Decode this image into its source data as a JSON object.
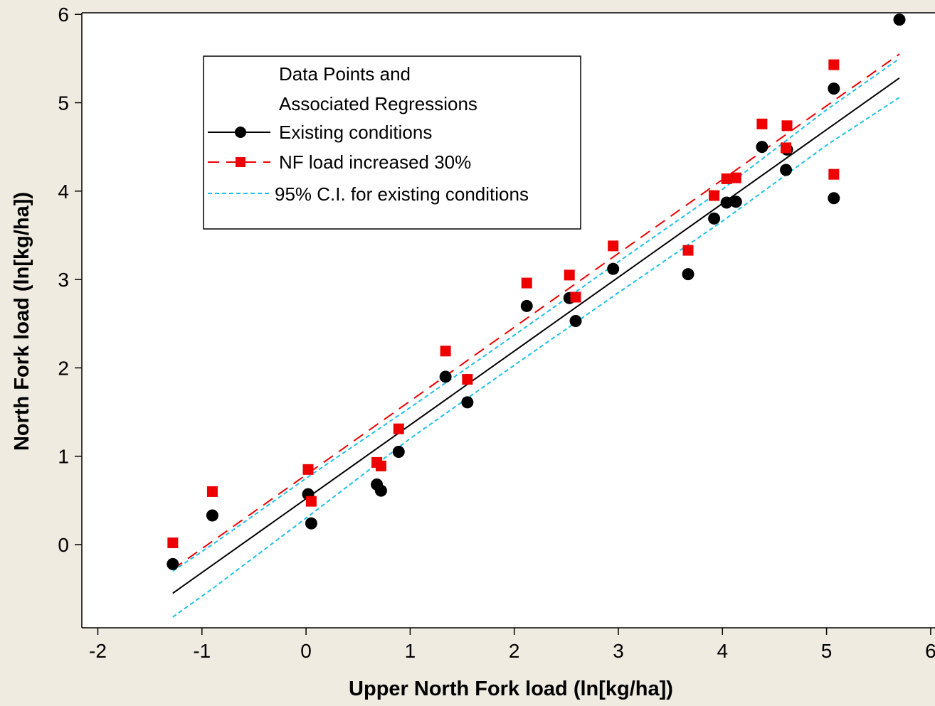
{
  "chart_data": {
    "type": "scatter",
    "xlabel": "Upper North Fork load (ln[kg/ha])",
    "ylabel": "North Fork load (ln[kg/ha])",
    "xlim": [
      -2,
      6
    ],
    "ylim": [
      -0.9,
      6
    ],
    "x_ticks": [
      "-2",
      "-1",
      "0",
      "1",
      "2",
      "3",
      "4",
      "5",
      "6"
    ],
    "y_ticks": [
      "0",
      "1",
      "2",
      "3",
      "4",
      "5",
      "6"
    ],
    "legend": {
      "position": "top-left",
      "title_lines": [
        "Data Points and",
        "Associated Regressions"
      ],
      "entries": [
        "Existing conditions",
        "NF load increased 30%",
        "95% C.I. for existing conditions"
      ]
    },
    "colors": {
      "existing": "#000000",
      "increased": "#ee0000",
      "ci": "#1ec0ea",
      "background": "#efebe1"
    },
    "series": [
      {
        "name": "Existing conditions",
        "marker": "circle",
        "points": [
          [
            -1.28,
            -0.22
          ],
          [
            -0.9,
            0.33
          ],
          [
            0.02,
            0.57
          ],
          [
            0.05,
            0.24
          ],
          [
            0.68,
            0.68
          ],
          [
            0.72,
            0.61
          ],
          [
            0.89,
            1.05
          ],
          [
            1.34,
            1.9
          ],
          [
            1.55,
            1.61
          ],
          [
            2.12,
            2.7
          ],
          [
            2.53,
            2.79
          ],
          [
            2.59,
            2.53
          ],
          [
            2.95,
            3.12
          ],
          [
            3.67,
            3.06
          ],
          [
            3.92,
            3.69
          ],
          [
            4.04,
            3.87
          ],
          [
            4.13,
            3.88
          ],
          [
            4.38,
            4.5
          ],
          [
            4.61,
            4.24
          ],
          [
            4.62,
            4.47
          ],
          [
            5.07,
            5.16
          ],
          [
            5.07,
            3.92
          ],
          [
            5.7,
            5.94
          ]
        ]
      },
      {
        "name": "NF load increased 30%",
        "marker": "square",
        "points": [
          [
            -1.28,
            0.02
          ],
          [
            -0.9,
            0.6
          ],
          [
            0.02,
            0.85
          ],
          [
            0.05,
            0.49
          ],
          [
            0.68,
            0.93
          ],
          [
            0.72,
            0.89
          ],
          [
            0.89,
            1.31
          ],
          [
            1.34,
            2.19
          ],
          [
            1.55,
            1.87
          ],
          [
            2.12,
            2.96
          ],
          [
            2.53,
            3.05
          ],
          [
            2.59,
            2.8
          ],
          [
            2.95,
            3.38
          ],
          [
            3.67,
            3.33
          ],
          [
            3.92,
            3.95
          ],
          [
            4.04,
            4.14
          ],
          [
            4.13,
            4.15
          ],
          [
            4.38,
            4.76
          ],
          [
            4.61,
            4.49
          ],
          [
            4.62,
            4.74
          ],
          [
            5.07,
            5.43
          ],
          [
            5.07,
            4.19
          ]
        ]
      }
    ],
    "regressions": [
      {
        "name": "Existing conditions",
        "x": [
          -1.28,
          5.7
        ],
        "y": [
          -0.55,
          5.28
        ]
      },
      {
        "name": "NF load increased 30%",
        "x": [
          -1.28,
          5.7
        ],
        "y": [
          -0.28,
          5.55
        ]
      },
      {
        "name": "95% C.I. for existing conditions (upper)",
        "x": [
          -1.28,
          -0.9,
          0.0,
          1.0,
          2.0,
          3.0,
          4.0,
          5.0,
          5.7
        ],
        "y": [
          -0.3,
          0.0,
          0.75,
          1.55,
          2.37,
          3.2,
          4.02,
          4.92,
          5.5
        ]
      },
      {
        "name": "95% C.I. for existing conditions (lower)",
        "x": [
          -1.28,
          -0.9,
          0.0,
          1.0,
          2.0,
          3.0,
          4.0,
          5.0,
          5.7
        ],
        "y": [
          -0.82,
          -0.5,
          0.3,
          1.2,
          2.03,
          2.85,
          3.66,
          4.52,
          5.06
        ]
      }
    ]
  }
}
